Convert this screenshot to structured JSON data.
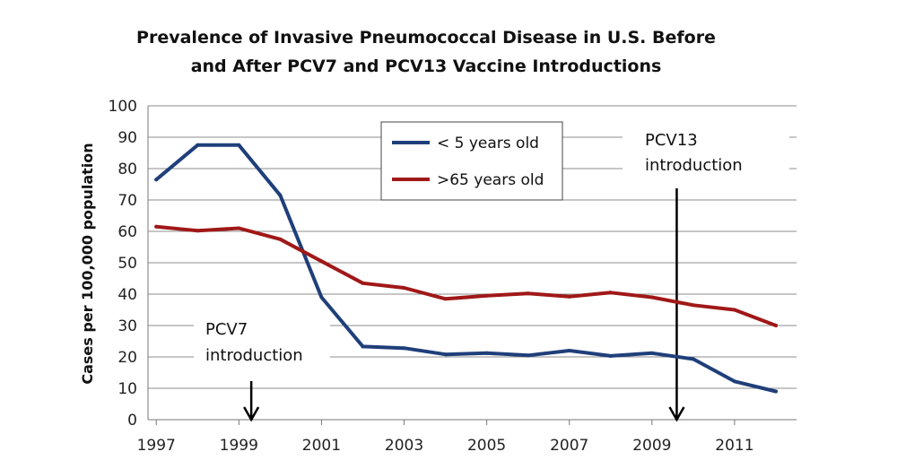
{
  "chart_data": {
    "type": "line",
    "title": [
      "Prevalence of Invasive Pneumococcal Disease in U.S. Before",
      "and After PCV7 and PCV13 Vaccine Introductions"
    ],
    "ylabel": "Cases per 100,000 population",
    "ylim": [
      0,
      100
    ],
    "yticks": [
      0,
      10,
      20,
      30,
      40,
      50,
      60,
      70,
      80,
      90,
      100
    ],
    "xlim": [
      1996.8,
      2012.5
    ],
    "xticks": [
      1997,
      1999,
      2001,
      2003,
      2005,
      2007,
      2009,
      2011
    ],
    "grid": "horizontal",
    "legend_position": "top-center",
    "series": [
      {
        "name": "< 5 years old",
        "color": "#1f3f7a",
        "x": [
          1997,
          1998,
          1999,
          2000,
          2001,
          2002,
          2003,
          2004,
          2005,
          2006,
          2007,
          2008,
          2009,
          2010,
          2011,
          2012
        ],
        "y": [
          76.5,
          87.5,
          87.5,
          71.5,
          39,
          23.3,
          22.8,
          20.8,
          21.2,
          20.5,
          22,
          20.3,
          21.2,
          19.3,
          12.2,
          9
        ]
      },
      {
        "name": ">65 years old",
        "color": "#a01818",
        "x": [
          1997,
          1998,
          1999,
          2000,
          2001,
          2002,
          2003,
          2004,
          2005,
          2006,
          2007,
          2008,
          2009,
          2010,
          2011,
          2012
        ],
        "y": [
          61.5,
          60.2,
          61,
          57.5,
          50.5,
          43.5,
          42,
          38.5,
          39.5,
          40.2,
          39.2,
          40.5,
          39,
          36.5,
          35,
          30
        ]
      }
    ],
    "annotations": [
      {
        "lines": [
          "PCV7",
          "introduction"
        ],
        "arrow_x": 1999.3
      },
      {
        "lines": [
          "PCV13",
          "introduction"
        ],
        "arrow_x": 2009.6
      }
    ]
  }
}
